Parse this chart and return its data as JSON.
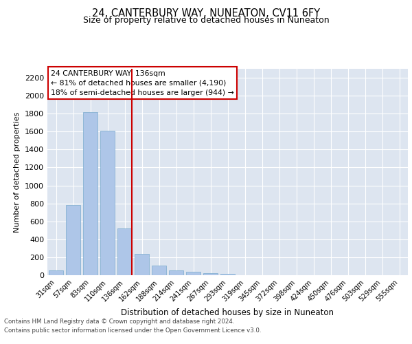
{
  "title": "24, CANTERBURY WAY, NUNEATON, CV11 6FY",
  "subtitle": "Size of property relative to detached houses in Nuneaton",
  "xlabel": "Distribution of detached houses by size in Nuneaton",
  "ylabel": "Number of detached properties",
  "categories": [
    "31sqm",
    "57sqm",
    "83sqm",
    "110sqm",
    "136sqm",
    "162sqm",
    "188sqm",
    "214sqm",
    "241sqm",
    "267sqm",
    "293sqm",
    "319sqm",
    "345sqm",
    "372sqm",
    "398sqm",
    "424sqm",
    "450sqm",
    "476sqm",
    "503sqm",
    "529sqm",
    "555sqm"
  ],
  "values": [
    50,
    780,
    1820,
    1610,
    520,
    235,
    105,
    55,
    38,
    20,
    15,
    0,
    0,
    0,
    0,
    0,
    0,
    0,
    0,
    0,
    0
  ],
  "bar_color": "#aec6e8",
  "bar_edge_color": "#7aaace",
  "highlight_index": 4,
  "highlight_color": "#cc0000",
  "annotation_title": "24 CANTERBURY WAY: 136sqm",
  "annotation_line1": "← 81% of detached houses are smaller (4,190)",
  "annotation_line2": "18% of semi-detached houses are larger (944) →",
  "ylim": [
    0,
    2300
  ],
  "yticks": [
    0,
    200,
    400,
    600,
    800,
    1000,
    1200,
    1400,
    1600,
    1800,
    2000,
    2200
  ],
  "plot_background": "#dde5f0",
  "footer_line1": "Contains HM Land Registry data © Crown copyright and database right 2024.",
  "footer_line2": "Contains public sector information licensed under the Open Government Licence v3.0."
}
